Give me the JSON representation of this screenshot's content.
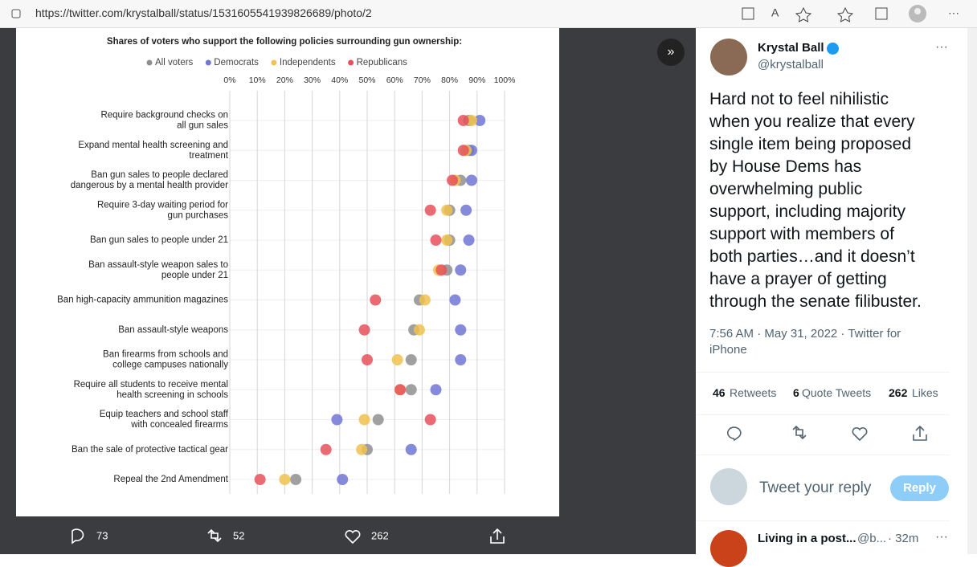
{
  "browser": {
    "url": "https://twitter.com/krystalball/status/1531605541939826689/photo/2"
  },
  "chart_data": {
    "type": "dot",
    "title": "Shares of voters who support the following policies surrounding gun ownership:",
    "categories": [
      [
        "Require background checks on",
        "all gun sales"
      ],
      [
        "Expand mental health screening and",
        "treatment"
      ],
      [
        "Ban gun sales to people declared",
        "dangerous by a mental health provider"
      ],
      [
        "Require 3-day waiting period for",
        "gun purchases"
      ],
      [
        "Ban gun sales to people under 21"
      ],
      [
        "Ban assault-style weapon sales to",
        "people under 21"
      ],
      [
        "Ban high-capacity ammunition magazines"
      ],
      [
        "Ban assault-style weapons"
      ],
      [
        "Ban firearms from schools and",
        "college campuses nationally"
      ],
      [
        "Require all students to receive mental",
        "health screening in schools"
      ],
      [
        "Equip teachers and school staff",
        "with concealed firearms"
      ],
      [
        "Ban the sale of protective tactical gear"
      ],
      [
        "Repeal the 2nd Amendment"
      ]
    ],
    "series": [
      {
        "name": "All voters",
        "color": "#8f8f8f",
        "values": [
          87,
          87,
          84,
          80,
          80,
          79,
          69,
          67,
          66,
          66,
          54,
          50,
          24
        ]
      },
      {
        "name": "Democrats",
        "color": "#7076d4",
        "values": [
          91,
          88,
          88,
          86,
          87,
          84,
          82,
          84,
          84,
          75,
          39,
          66,
          41
        ]
      },
      {
        "name": "Independents",
        "color": "#f0c24e",
        "values": [
          88,
          86,
          82,
          79,
          79,
          76,
          71,
          69,
          61,
          62,
          49,
          48,
          20
        ]
      },
      {
        "name": "Republicans",
        "color": "#e8515c",
        "values": [
          85,
          85,
          81,
          73,
          75,
          77,
          53,
          49,
          50,
          62,
          73,
          35,
          11
        ]
      }
    ],
    "xlim": [
      0,
      100
    ],
    "xticks": [
      {
        "value": 0,
        "label": "0%"
      },
      {
        "value": 10,
        "label": "10%"
      },
      {
        "value": 20,
        "label": "20%"
      },
      {
        "value": 30,
        "label": "30%"
      },
      {
        "value": 40,
        "label": "40%"
      },
      {
        "value": 50,
        "label": "50%"
      },
      {
        "value": 60,
        "label": "60%"
      },
      {
        "value": 70,
        "label": "70%"
      },
      {
        "value": 80,
        "label": "80%"
      },
      {
        "value": 90,
        "label": "90%"
      },
      {
        "value": 100,
        "label": "100%"
      }
    ],
    "grid": true
  },
  "bottom_bar": {
    "replies": 73,
    "retweets": 52,
    "likes": 262
  },
  "tweet": {
    "name": "Krystal Ball",
    "handle": "@krystalball",
    "text": [
      "Hard not to feel nihilistic",
      "when you realize that every",
      "single item being proposed",
      "by House Dems has",
      "overwhelming public",
      "support, including majority",
      "support with members of",
      "both parties…and it doesn’t",
      "have a prayer of getting",
      "through the senate filibuster."
    ],
    "meta": [
      "7:56 AM · May 31, 2022 · Twitter for",
      "iPhone"
    ],
    "stats": [
      {
        "count": 46,
        "label": "Retweets"
      },
      {
        "count": 6,
        "label": "Quote Tweets"
      },
      {
        "count": 262,
        "label": "Likes"
      }
    ],
    "reply_placeholder": "Tweet your reply",
    "reply_button": "Reply"
  },
  "next_tweet": {
    "name": "Living in a post...",
    "handle": "@b...",
    "time": "· 32m"
  }
}
